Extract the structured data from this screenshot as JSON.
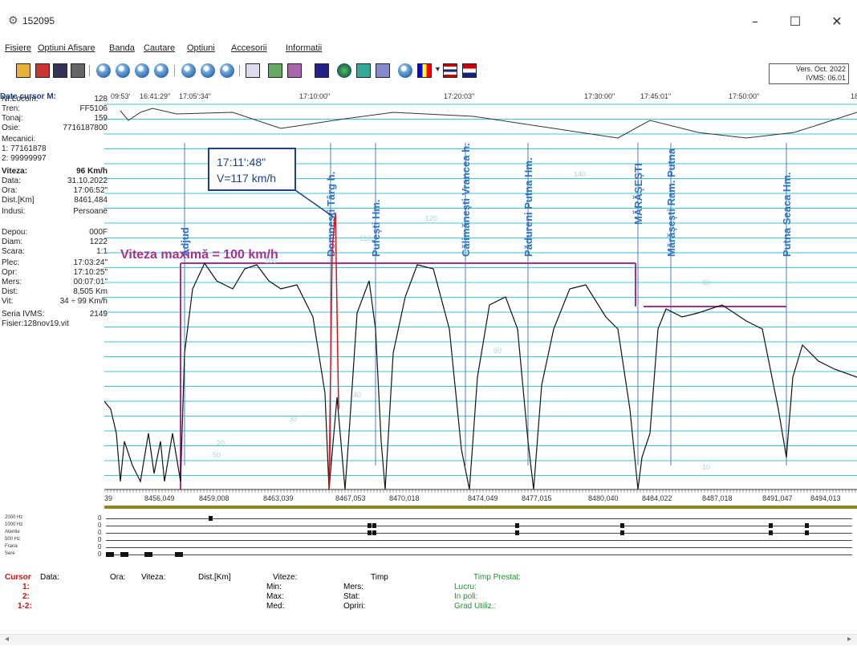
{
  "window": {
    "title": "152095",
    "minimize": "–",
    "maximize": "☐",
    "close": "✕"
  },
  "menu": [
    "Fisiere",
    "Optiuni Afisare",
    "Banda",
    "Cautare",
    "Optiuni",
    "Accesorii",
    "Informatii"
  ],
  "version": {
    "line1": "Vers. Oct. 2022",
    "line2": "IVMS: 06.01"
  },
  "header": {
    "label": "Date cursor M:",
    "times": [
      "09:53'",
      "16:41:29\"",
      "17:05':34\"",
      "17:10:00\"",
      "17:20:03\"",
      "17:30:00\"",
      "17:45:01\"",
      "17:50:00\"",
      "18"
    ]
  },
  "left_panel": [
    {
      "k": "Nr.Locom:",
      "v": "128"
    },
    {
      "k": "Tren:",
      "v": "FF5106"
    },
    {
      "k": "Tonaj:",
      "v": "159"
    },
    {
      "k": "Osie:",
      "v": "7716187800"
    },
    {
      "k": "Mecanici:",
      "v": ""
    },
    {
      "k": "1: 77161878",
      "v": ""
    },
    {
      "k": "2: 99999997",
      "v": ""
    },
    {
      "k": "Viteza:",
      "v": "96 Km/h",
      "bold": true
    },
    {
      "k": "Data:",
      "v": "31.10.2022"
    },
    {
      "k": "Ora:",
      "v": "17:06:52\""
    },
    {
      "k": "Dist.[Km]",
      "v": "8461,484"
    },
    {
      "k": "Indusi:",
      "v": "Persoane"
    },
    {
      "k": "",
      "v": ""
    },
    {
      "k": "Depou:",
      "v": "000F"
    },
    {
      "k": "Diam:",
      "v": "1222"
    },
    {
      "k": "Scara:",
      "v": "1:1"
    },
    {
      "k": "Plec:",
      "v": "17:03:24\""
    },
    {
      "k": "Opr:",
      "v": "17:10:25\""
    },
    {
      "k": "Mers:",
      "v": "00:07:01\""
    },
    {
      "k": "Dist:",
      "v": "8,505 Km"
    },
    {
      "k": "Vit:",
      "v": "34 ÷ 99 Km/h"
    },
    {
      "k": "Seria IVMS:",
      "v": "2149"
    },
    {
      "k": "Fisier:128nov19.vit",
      "v": ""
    }
  ],
  "chart_data": {
    "type": "line",
    "title": "",
    "xlabel": "",
    "ylabel": "",
    "grid": true,
    "max_speed_label": "Viteza maximă = 100 km/h",
    "max_speed": 100,
    "cursor_box": {
      "time": "17:11':48\"",
      "speed": "V=117 km/h"
    },
    "stations": [
      "Adjud",
      "Domnești Târg h.",
      "Pufești Hm.",
      "Călimănești Vrancea h.",
      "Pădureni Putna Hm.",
      "MĂRĂȘEȘTI",
      "Mărășești Ram. Putna",
      "Putna Seaca Hm."
    ],
    "distance_ticks": [
      "39",
      "8456,049",
      "8459,008",
      "8463,039",
      "8467,053",
      "8470,018",
      "8474,049",
      "8477,015",
      "8480,040",
      "8484,022",
      "8487,018",
      "8491,047",
      "8494,013"
    ],
    "speed_scale_labels": [
      "50",
      "100",
      "110",
      "120",
      "140",
      "80",
      "60",
      "40",
      "30",
      "20",
      "10"
    ]
  },
  "signals": {
    "labels": [
      "2000 Hz",
      "1000 Hz",
      "Atentie",
      "500 Hz",
      "Frana",
      "Sere"
    ],
    "zeros": [
      "0",
      "0",
      "0",
      "0",
      "0",
      "0"
    ]
  },
  "bottom": {
    "cursor": "Cursor",
    "data": "Data:",
    "ora": "Ora:",
    "viteza": "Viteza:",
    "dist": "Dist.[Km]",
    "viteze": "Viteze:",
    "min": "Min:",
    "max": "Max:",
    "med": "Med:",
    "timp": "Timp",
    "mers": "Mers:",
    "stat": "Stat:",
    "opriri": "Opriri:",
    "timp_prestat": "Timp Prestat:",
    "lucru": "Lucru:",
    "in_poli": "In poli:",
    "grad": "Grad Utiliz.:",
    "r1": "1:",
    "r2": "2:",
    "r3": "1-2:"
  }
}
